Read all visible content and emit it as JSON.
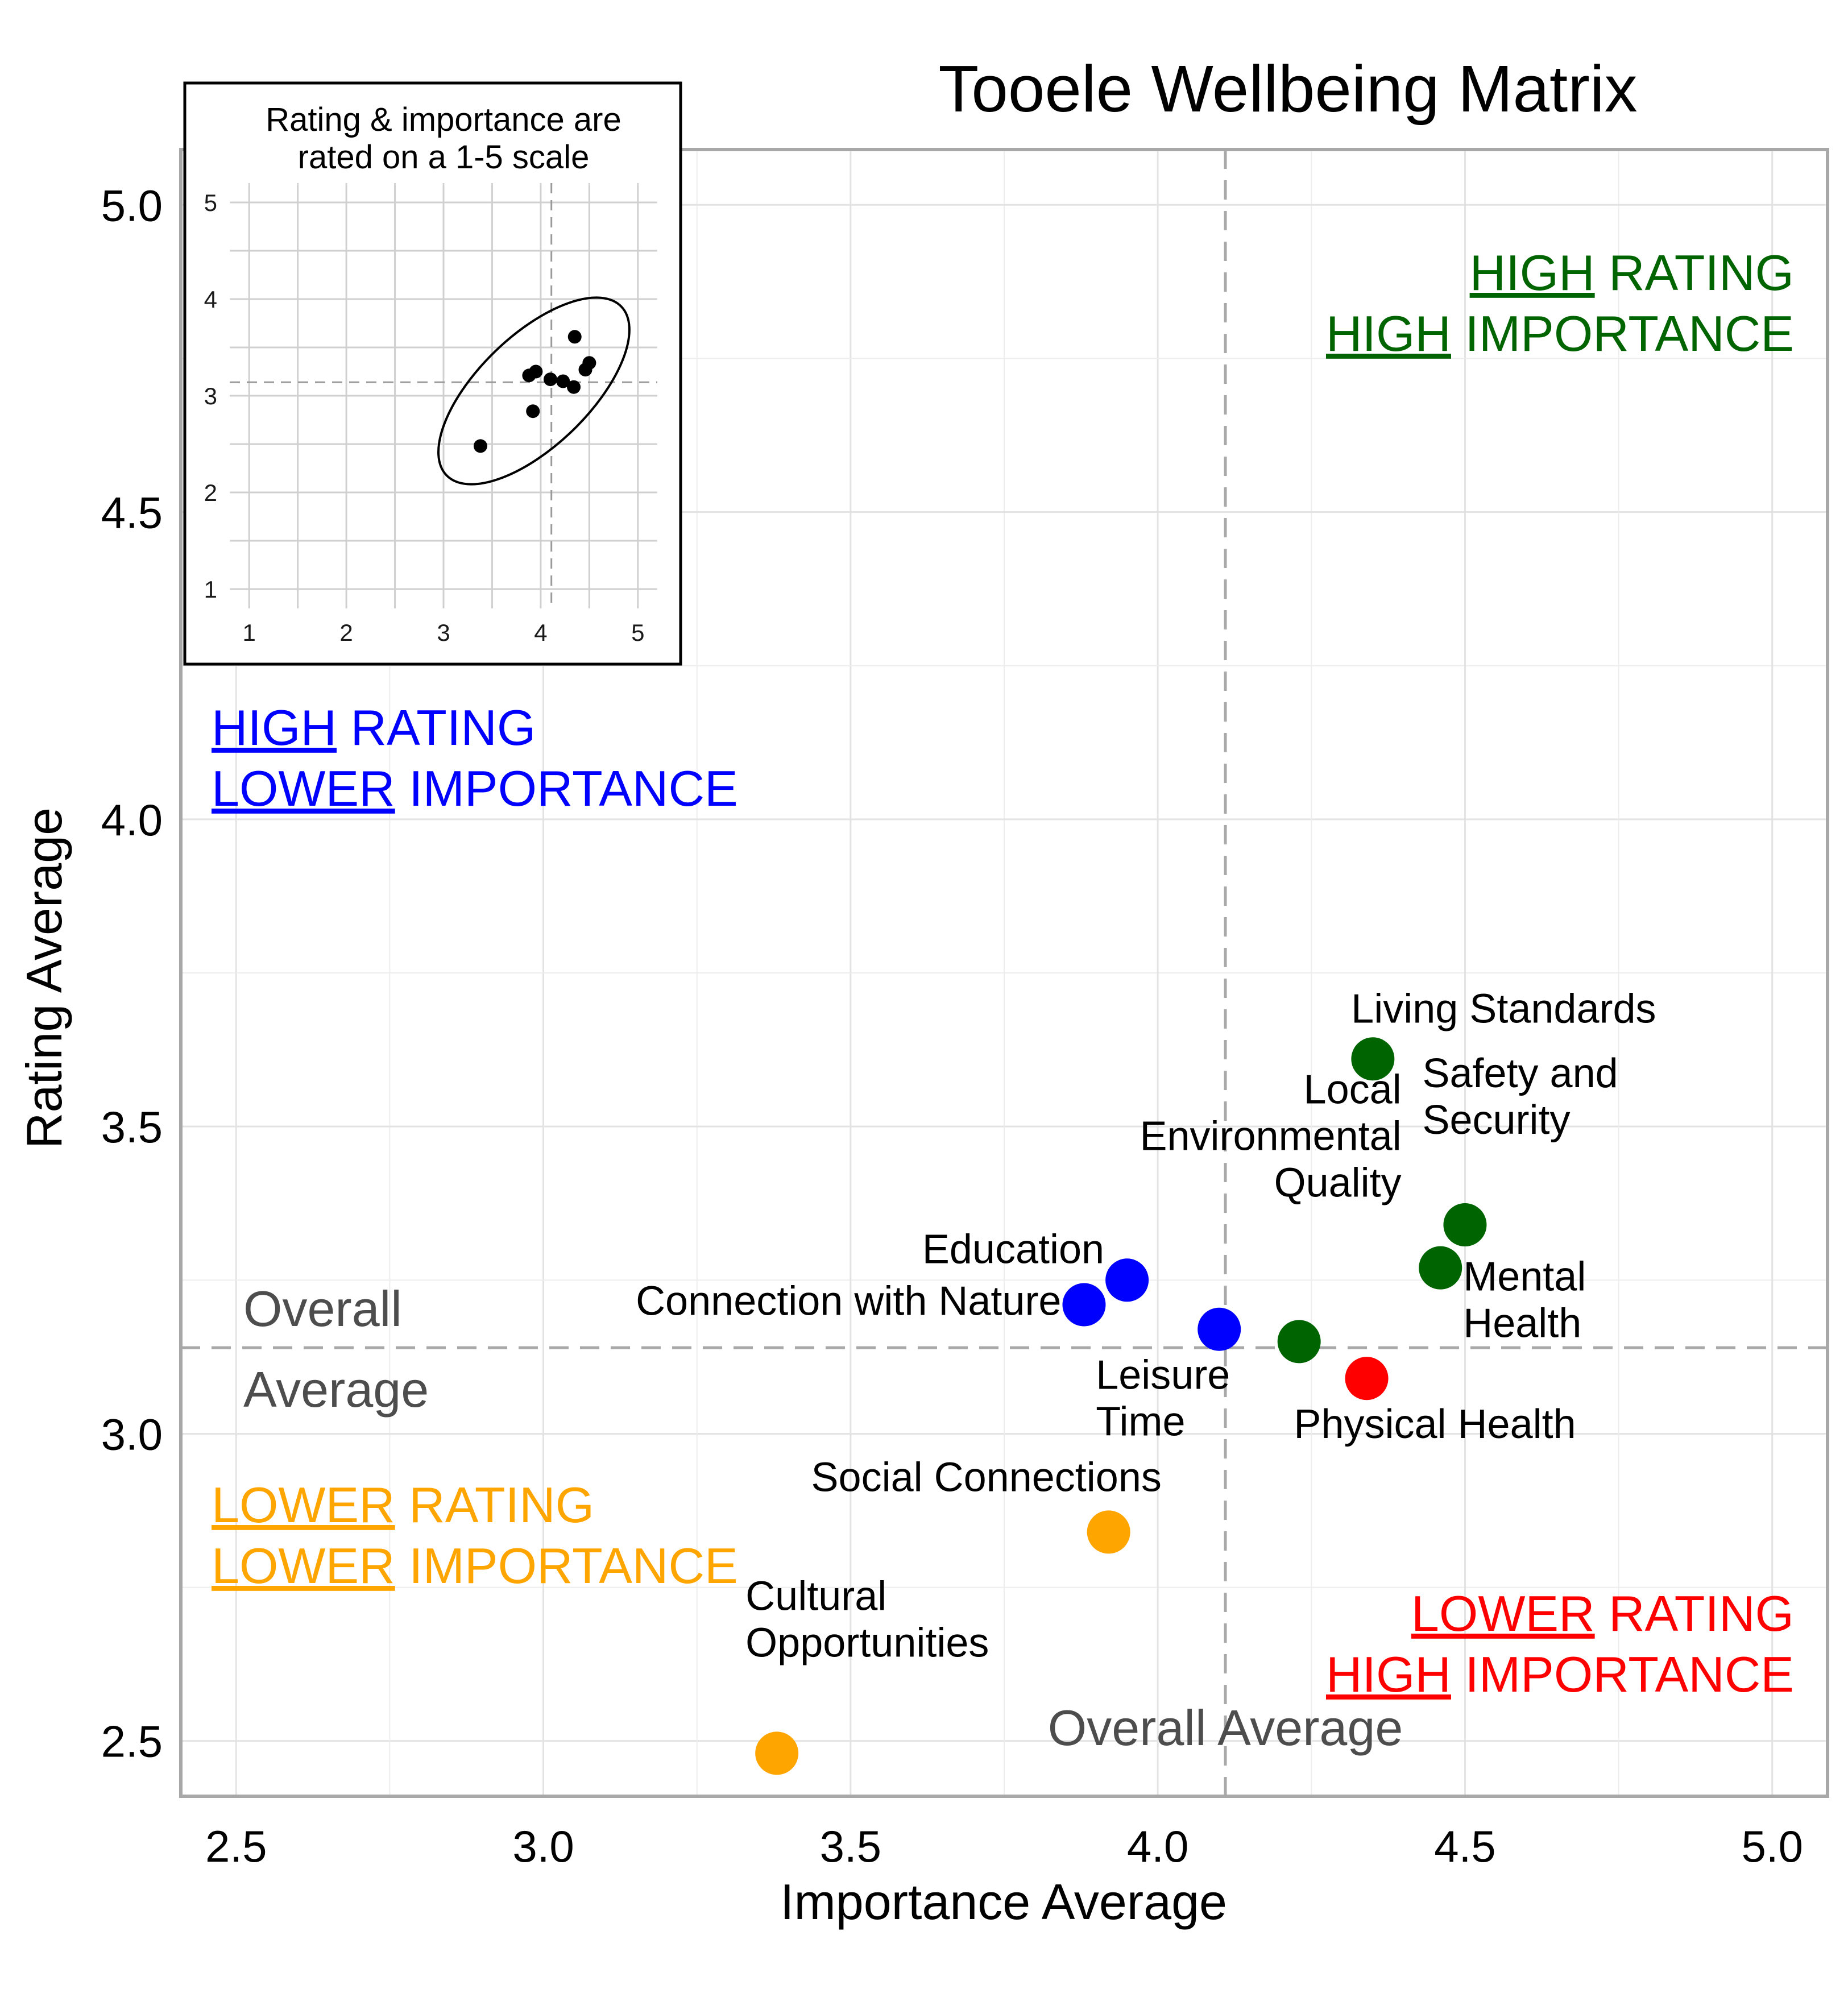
{
  "chart_data": {
    "type": "scatter",
    "title": "Tooele Wellbeing Matrix",
    "xlabel": "Importance Average",
    "ylabel": "Rating Average",
    "xlim": [
      2.41,
      5.09
    ],
    "ylim": [
      2.41,
      5.09
    ],
    "x_ticks": [
      "2.5",
      "3.0",
      "3.5",
      "4.0",
      "4.5",
      "5.0"
    ],
    "y_ticks": [
      "2.5",
      "3.0",
      "3.5",
      "4.0",
      "4.5",
      "5.0"
    ],
    "grid": true,
    "reference_lines": {
      "x": 4.11,
      "y": 3.14,
      "x_label": "Overall Average",
      "y_label_line1": "Overall",
      "y_label_line2": "Average"
    },
    "colors": {
      "high_high": "#006400",
      "high_lower": "#0000ff",
      "lower_lower": "#ffa500",
      "lower_high": "#ff0000"
    },
    "points": [
      {
        "label_lines": [
          "Living Standards"
        ],
        "importance": 4.35,
        "rating": 3.61,
        "group": "high_high"
      },
      {
        "label_lines": [
          "Safety and",
          "Security"
        ],
        "importance": 4.5,
        "rating": 3.34,
        "group": "high_high"
      },
      {
        "label_lines": [
          "Mental",
          "Health"
        ],
        "importance": 4.46,
        "rating": 3.27,
        "group": "high_high"
      },
      {
        "label_lines": [
          "Local",
          "Environmental",
          "Quality"
        ],
        "importance": 4.23,
        "rating": 3.15,
        "group": "high_high"
      },
      {
        "label_lines": [
          "Physical Health"
        ],
        "importance": 4.34,
        "rating": 3.09,
        "group": "lower_high"
      },
      {
        "label_lines": [
          "Education"
        ],
        "importance": 3.95,
        "rating": 3.25,
        "group": "high_lower"
      },
      {
        "label_lines": [
          "Connection with Nature"
        ],
        "importance": 3.88,
        "rating": 3.21,
        "group": "high_lower"
      },
      {
        "label_lines": [
          "Leisure",
          "Time"
        ],
        "importance": 4.1,
        "rating": 3.17,
        "group": "high_lower"
      },
      {
        "label_lines": [
          "Social Connections"
        ],
        "importance": 3.92,
        "rating": 2.84,
        "group": "lower_lower"
      },
      {
        "label_lines": [
          "Cultural",
          "Opportunities"
        ],
        "importance": 3.38,
        "rating": 2.48,
        "group": "lower_lower"
      }
    ],
    "quadrant_labels": {
      "high_high": {
        "line1": [
          "HIGH",
          " RATING"
        ],
        "line2": [
          "HIGH",
          " IMPORTANCE"
        ],
        "position": "top-right"
      },
      "high_lower": {
        "line1": [
          "HIGH",
          " RATING"
        ],
        "line2": [
          "LOWER",
          " IMPORTANCE"
        ],
        "position": "top-left"
      },
      "lower_lower": {
        "line1": [
          "LOWER",
          " RATING"
        ],
        "line2": [
          "LOWER",
          " IMPORTANCE"
        ],
        "position": "bottom-left"
      },
      "lower_high": {
        "line1": [
          "LOWER",
          " RATING"
        ],
        "line2": [
          "HIGH",
          " IMPORTANCE"
        ],
        "position": "bottom-right"
      }
    },
    "inset": {
      "note_line1": "Rating & importance are",
      "note_line2": "rated on a 1-5 scale",
      "xlim": [
        0.8,
        5.2
      ],
      "ylim": [
        0.8,
        5.2
      ],
      "x_ticks": [
        "1",
        "2",
        "3",
        "4",
        "5"
      ],
      "y_ticks": [
        "1",
        "2",
        "3",
        "4",
        "5"
      ],
      "ellipse": {
        "cx": 3.93,
        "cy": 3.05,
        "rx": 1.25,
        "ry": 0.57,
        "angle_deg": 44
      }
    }
  }
}
